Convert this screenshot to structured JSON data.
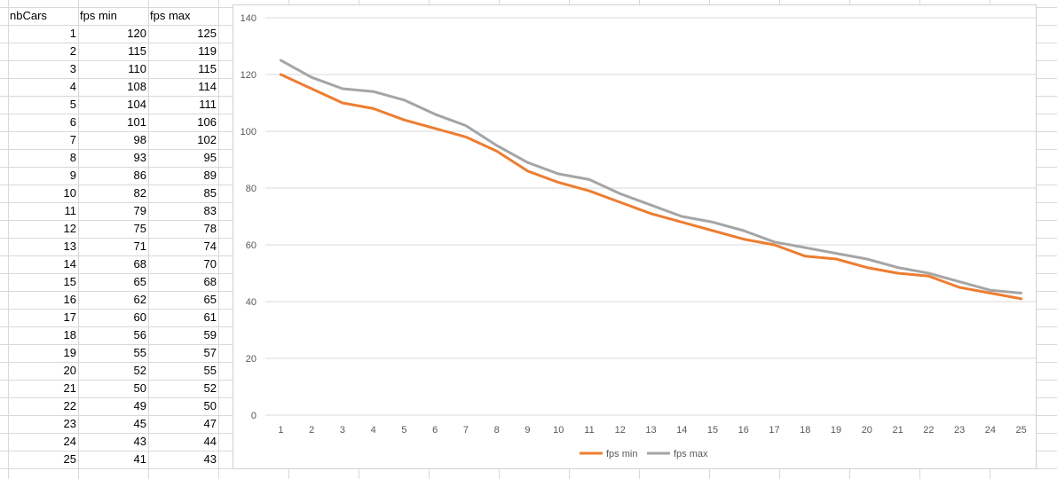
{
  "table": {
    "headers": [
      "nbCars",
      "fps min",
      "fps max"
    ],
    "rows": [
      [
        1,
        120,
        125
      ],
      [
        2,
        115,
        119
      ],
      [
        3,
        110,
        115
      ],
      [
        4,
        108,
        114
      ],
      [
        5,
        104,
        111
      ],
      [
        6,
        101,
        106
      ],
      [
        7,
        98,
        102
      ],
      [
        8,
        93,
        95
      ],
      [
        9,
        86,
        89
      ],
      [
        10,
        82,
        85
      ],
      [
        11,
        79,
        83
      ],
      [
        12,
        75,
        78
      ],
      [
        13,
        71,
        74
      ],
      [
        14,
        68,
        70
      ],
      [
        15,
        65,
        68
      ],
      [
        16,
        62,
        65
      ],
      [
        17,
        60,
        61
      ],
      [
        18,
        56,
        59
      ],
      [
        19,
        55,
        57
      ],
      [
        20,
        52,
        55
      ],
      [
        21,
        50,
        52
      ],
      [
        22,
        49,
        50
      ],
      [
        23,
        45,
        47
      ],
      [
        24,
        43,
        44
      ],
      [
        25,
        41,
        43
      ]
    ]
  },
  "chart_data": {
    "type": "line",
    "title": "",
    "xlabel": "",
    "ylabel": "",
    "x": [
      1,
      2,
      3,
      4,
      5,
      6,
      7,
      8,
      9,
      10,
      11,
      12,
      13,
      14,
      15,
      16,
      17,
      18,
      19,
      20,
      21,
      22,
      23,
      24,
      25
    ],
    "yticks": [
      0,
      20,
      40,
      60,
      80,
      100,
      120,
      140
    ],
    "ylim": [
      0,
      140
    ],
    "grid": true,
    "legend_position": "bottom",
    "series": [
      {
        "name": "fps min",
        "color": "#ED7D31",
        "values": [
          120,
          115,
          110,
          108,
          104,
          101,
          98,
          93,
          86,
          82,
          79,
          75,
          71,
          68,
          65,
          62,
          60,
          56,
          55,
          52,
          50,
          49,
          45,
          43,
          41
        ]
      },
      {
        "name": "fps max",
        "color": "#A5A5A5",
        "values": [
          125,
          119,
          115,
          114,
          111,
          106,
          102,
          95,
          89,
          85,
          83,
          78,
          74,
          70,
          68,
          65,
          61,
          59,
          57,
          55,
          52,
          50,
          47,
          44,
          43
        ]
      }
    ]
  }
}
